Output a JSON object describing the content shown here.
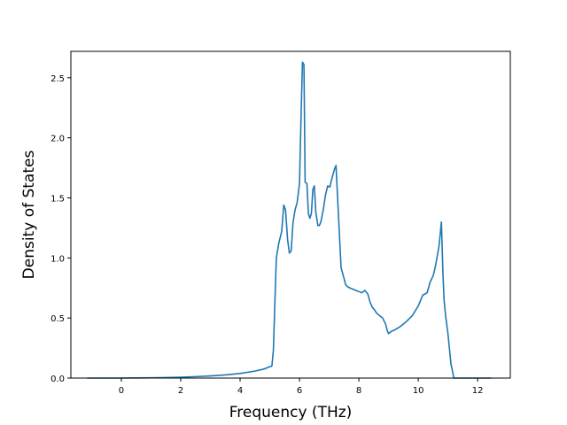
{
  "colors": {
    "line": "#1f77b4",
    "axes": "#000000",
    "background": "#ffffff"
  },
  "chart_data": {
    "type": "line",
    "title": "",
    "xlabel": "Frequency (THz)",
    "ylabel": "Density of States",
    "xlim": [
      -1.7,
      13.1
    ],
    "ylim": [
      0.0,
      2.72
    ],
    "grid": false,
    "legend": "none",
    "xticks": [
      0,
      2,
      4,
      6,
      8,
      10,
      12
    ],
    "xtick_labels": [
      "0",
      "2",
      "4",
      "6",
      "8",
      "10",
      "12"
    ],
    "yticks": [
      0.0,
      0.5,
      1.0,
      1.5,
      2.0,
      2.5
    ],
    "ytick_labels": [
      "0.0",
      "0.5",
      "1.0",
      "1.5",
      "2.0",
      "2.5"
    ],
    "series": [
      {
        "x": [
          -1.15,
          -0.5,
          0.0,
          0.5,
          1.0,
          1.5,
          2.0,
          2.5,
          3.0,
          3.5,
          4.0,
          4.5,
          4.8,
          5.0,
          5.07,
          5.12,
          5.17,
          5.22,
          5.3,
          5.4,
          5.47,
          5.53,
          5.6,
          5.66,
          5.72,
          5.78,
          5.85,
          5.92,
          6.0,
          6.05,
          6.1,
          6.15,
          6.19,
          6.25,
          6.3,
          6.35,
          6.4,
          6.45,
          6.5,
          6.55,
          6.62,
          6.67,
          6.72,
          6.8,
          6.88,
          6.95,
          7.02,
          7.1,
          7.18,
          7.23,
          7.3,
          7.4,
          7.5,
          7.55,
          7.62,
          7.7,
          7.8,
          7.9,
          8.0,
          8.1,
          8.2,
          8.3,
          8.38,
          8.45,
          8.52,
          8.6,
          8.7,
          8.8,
          8.9,
          8.95,
          9.0,
          9.1,
          9.2,
          9.4,
          9.6,
          9.8,
          10.0,
          10.15,
          10.3,
          10.4,
          10.5,
          10.55,
          10.6,
          10.7,
          10.78,
          10.83,
          10.87,
          10.92,
          11.0,
          11.1,
          11.2,
          11.3,
          11.5,
          12.0,
          12.45
        ],
        "values": [
          0.0,
          0.0,
          0.0,
          0.001,
          0.002,
          0.004,
          0.007,
          0.012,
          0.018,
          0.026,
          0.038,
          0.058,
          0.075,
          0.095,
          0.1,
          0.23,
          0.62,
          1.0,
          1.12,
          1.22,
          1.44,
          1.4,
          1.15,
          1.04,
          1.06,
          1.29,
          1.4,
          1.46,
          1.62,
          2.15,
          2.63,
          2.61,
          1.63,
          1.62,
          1.37,
          1.33,
          1.37,
          1.57,
          1.6,
          1.38,
          1.27,
          1.27,
          1.3,
          1.4,
          1.53,
          1.6,
          1.59,
          1.67,
          1.74,
          1.77,
          1.42,
          0.92,
          0.83,
          0.78,
          0.76,
          0.75,
          0.74,
          0.73,
          0.72,
          0.71,
          0.73,
          0.7,
          0.63,
          0.59,
          0.57,
          0.54,
          0.52,
          0.5,
          0.45,
          0.4,
          0.37,
          0.39,
          0.4,
          0.43,
          0.47,
          0.52,
          0.6,
          0.69,
          0.71,
          0.8,
          0.85,
          0.9,
          0.96,
          1.1,
          1.3,
          0.88,
          0.65,
          0.52,
          0.37,
          0.12,
          0.0,
          0.0,
          0.0,
          0.0,
          0.0
        ]
      }
    ]
  }
}
